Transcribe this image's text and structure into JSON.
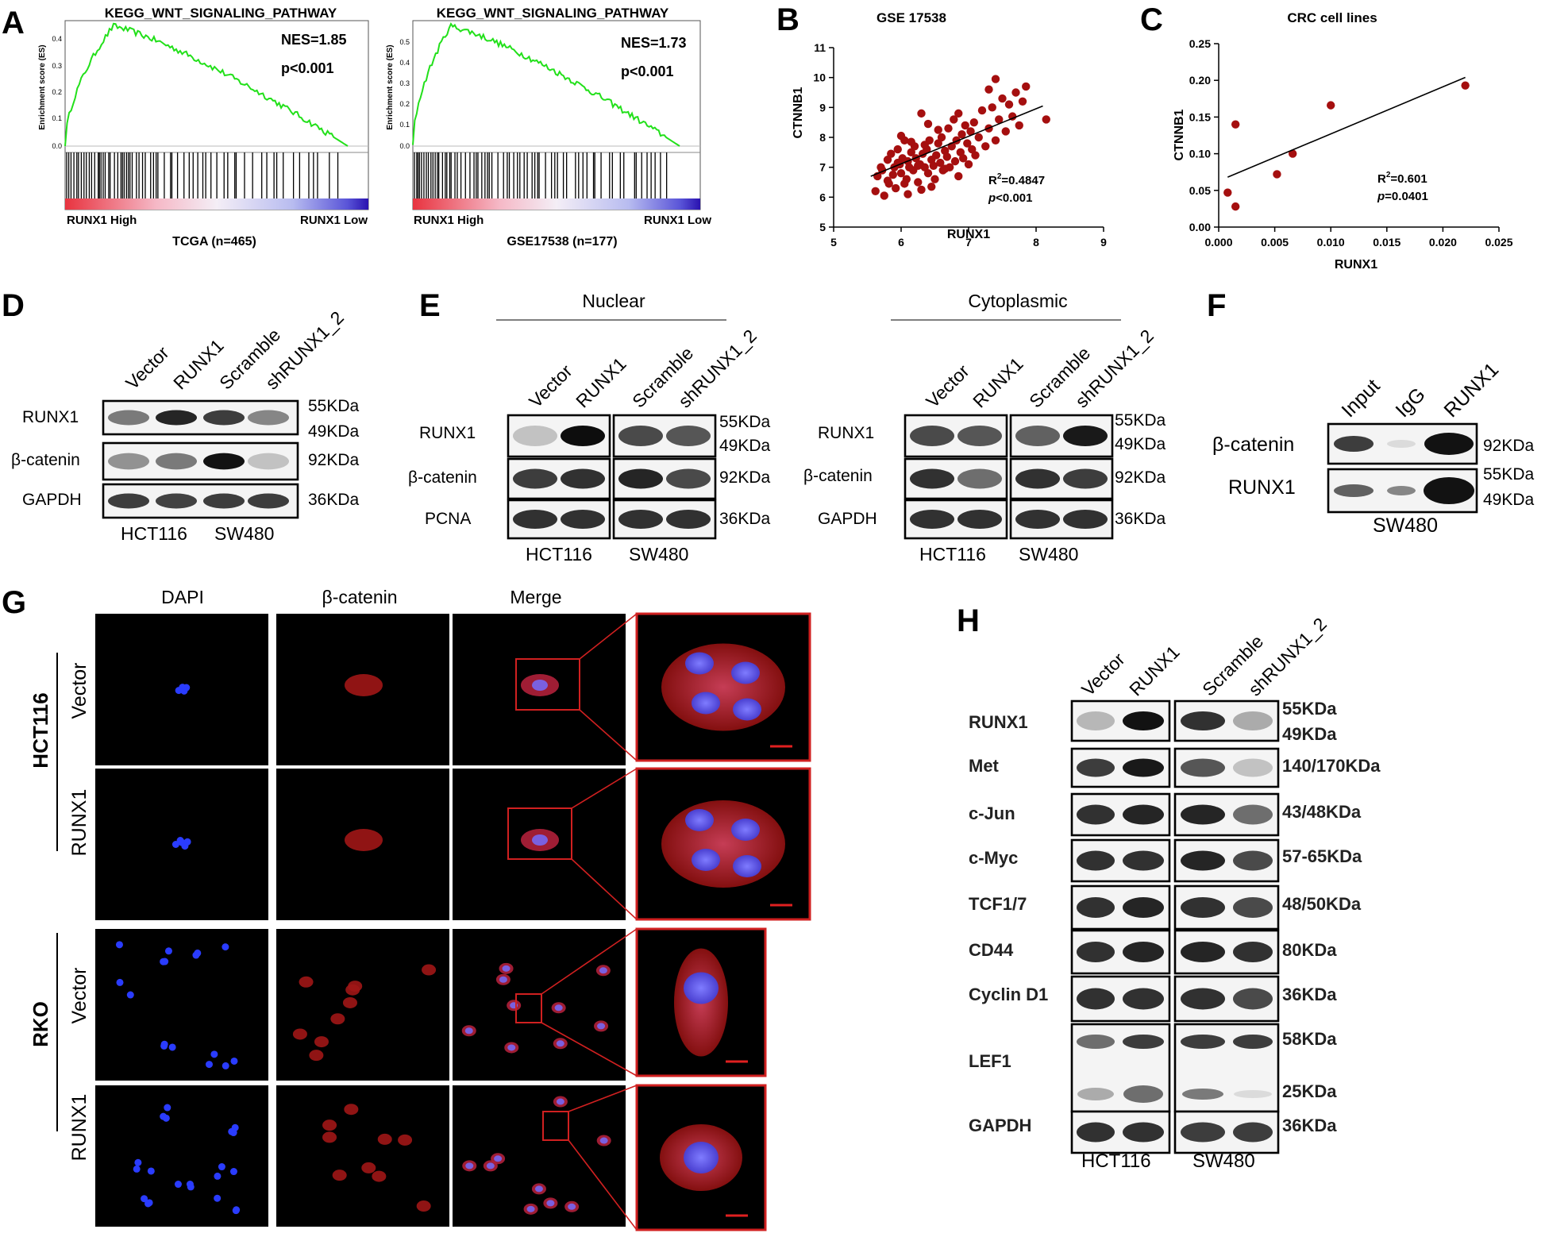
{
  "panels": {
    "A": "A",
    "B": "B",
    "C": "C",
    "D": "D",
    "E": "E",
    "F": "F",
    "G": "G",
    "H": "H"
  },
  "gsea": [
    {
      "title": "KEGG_WNT_SIGNALING_PATHWAY",
      "nes": "NES=1.85",
      "p": "p<0.001",
      "ylabel": "Enrichment score (ES)",
      "yticks": [
        "0.4",
        "0.3",
        "0.2",
        "0.1",
        "0.0"
      ],
      "high": "RUNX1 High",
      "low": "RUNX1 Low",
      "dataset": "TCGA (n=465)"
    },
    {
      "title": "KEGG_WNT_SIGNALING_PATHWAY",
      "nes": "NES=1.73",
      "p": "p<0.001",
      "ylabel": "Enrichment score (ES)",
      "yticks": [
        "0.5",
        "0.4",
        "0.3",
        "0.2",
        "0.1",
        "0.0"
      ],
      "high": "RUNX1 High",
      "low": "RUNX1 Low",
      "dataset": "GSE17538 (n=177)"
    }
  ],
  "chart_data": [
    {
      "type": "scatter",
      "title": "GSE 17538",
      "xlabel": "RUNX1",
      "ylabel": "CTNNB1",
      "xlim": [
        5,
        9
      ],
      "ylim": [
        5,
        11
      ],
      "xticks": [
        "5",
        "6",
        "7",
        "8",
        "9"
      ],
      "yticks": [
        "5",
        "6",
        "7",
        "8",
        "9",
        "10",
        "11"
      ],
      "r2": "=0.4847",
      "p": "<0.001",
      "fit": {
        "x": [
          5.55,
          8.1
        ],
        "y": [
          6.7,
          9.05
        ]
      },
      "points": [
        [
          5.62,
          6.2
        ],
        [
          5.65,
          6.7
        ],
        [
          5.7,
          7.0
        ],
        [
          5.72,
          6.9
        ],
        [
          5.75,
          6.05
        ],
        [
          5.8,
          7.25
        ],
        [
          5.82,
          6.45
        ],
        [
          5.85,
          7.45
        ],
        [
          5.88,
          6.75
        ],
        [
          5.9,
          7.0
        ],
        [
          5.92,
          6.3
        ],
        [
          5.95,
          7.6
        ],
        [
          5.98,
          7.1
        ],
        [
          6.0,
          6.8
        ],
        [
          6.02,
          7.3
        ],
        [
          6.05,
          7.9
        ],
        [
          6.08,
          6.6
        ],
        [
          6.1,
          7.2
        ],
        [
          6.12,
          7.0
        ],
        [
          6.15,
          7.5
        ],
        [
          6.18,
          6.9
        ],
        [
          6.2,
          7.7
        ],
        [
          6.22,
          7.3
        ],
        [
          6.25,
          6.5
        ],
        [
          6.28,
          7.1
        ],
        [
          6.3,
          8.8
        ],
        [
          6.32,
          7.45
        ],
        [
          6.35,
          7.0
        ],
        [
          6.38,
          7.6
        ],
        [
          6.4,
          6.8
        ],
        [
          6.42,
          7.9
        ],
        [
          6.45,
          7.25
        ],
        [
          6.48,
          7.05
        ],
        [
          6.5,
          6.6
        ],
        [
          6.52,
          7.4
        ],
        [
          6.55,
          7.8
        ],
        [
          6.58,
          7.15
        ],
        [
          6.6,
          8.0
        ],
        [
          6.62,
          6.9
        ],
        [
          6.65,
          7.55
        ],
        [
          6.68,
          7.35
        ],
        [
          6.7,
          8.3
        ],
        [
          6.72,
          7.0
        ],
        [
          6.75,
          7.7
        ],
        [
          6.78,
          8.6
        ],
        [
          6.8,
          7.2
        ],
        [
          6.82,
          7.9
        ],
        [
          6.85,
          6.7
        ],
        [
          6.88,
          7.5
        ],
        [
          6.9,
          8.1
        ],
        [
          6.92,
          7.3
        ],
        [
          6.95,
          8.4
        ],
        [
          6.98,
          7.8
        ],
        [
          7.0,
          7.1
        ],
        [
          7.03,
          8.2
        ],
        [
          7.05,
          7.6
        ],
        [
          7.08,
          8.5
        ],
        [
          7.1,
          7.4
        ],
        [
          7.15,
          8.0
        ],
        [
          7.2,
          8.9
        ],
        [
          7.25,
          7.7
        ],
        [
          7.3,
          8.3
        ],
        [
          7.35,
          9.0
        ],
        [
          7.4,
          7.9
        ],
        [
          7.45,
          8.6
        ],
        [
          7.5,
          9.3
        ],
        [
          7.55,
          8.2
        ],
        [
          7.6,
          9.1
        ],
        [
          7.65,
          8.7
        ],
        [
          7.7,
          9.5
        ],
        [
          7.75,
          8.4
        ],
        [
          7.8,
          9.2
        ],
        [
          6.05,
          6.45
        ],
        [
          6.25,
          7.05
        ],
        [
          6.45,
          6.35
        ],
        [
          6.65,
          6.95
        ],
        [
          5.95,
          7.15
        ],
        [
          6.35,
          7.75
        ],
        [
          6.55,
          8.25
        ],
        [
          6.15,
          7.85
        ],
        [
          7.4,
          9.95
        ],
        [
          7.3,
          9.6
        ],
        [
          8.15,
          8.6
        ],
        [
          7.85,
          9.7
        ],
        [
          6.0,
          8.05
        ],
        [
          6.4,
          8.45
        ],
        [
          6.85,
          8.8
        ],
        [
          6.1,
          6.1
        ],
        [
          5.8,
          6.55
        ],
        [
          6.3,
          6.25
        ]
      ]
    },
    {
      "type": "scatter",
      "title": "CRC cell lines",
      "xlabel": "RUNX1",
      "ylabel": "CTNNB1",
      "xlim": [
        0,
        0.025
      ],
      "ylim": [
        0,
        0.25
      ],
      "xticks": [
        "0.000",
        "0.005",
        "0.010",
        "0.015",
        "0.020",
        "0.025"
      ],
      "yticks": [
        "0.00",
        "0.05",
        "0.10",
        "0.15",
        "0.20",
        "0.25"
      ],
      "r2": "=0.601",
      "p": "=0.0401",
      "fit": {
        "x": [
          0.0008,
          0.022
        ],
        "y": [
          0.068,
          0.204
        ]
      },
      "points": [
        [
          0.0008,
          0.047
        ],
        [
          0.0015,
          0.028
        ],
        [
          0.0015,
          0.14
        ],
        [
          0.0052,
          0.072
        ],
        [
          0.0066,
          0.1
        ],
        [
          0.01,
          0.166
        ],
        [
          0.022,
          0.193
        ]
      ]
    }
  ],
  "labels": {
    "r2_prefix": "R",
    "r2_sup": "2",
    "p_italic": "p",
    "hct116": "HCT116",
    "sw480": "SW480",
    "nuclear": "Nuclear",
    "cytoplasmic": "Cytoplasmic"
  },
  "blotD": {
    "lanes": [
      "Vector",
      "RUNX1",
      "Scramble",
      "shRUNX1_2"
    ],
    "rows": [
      "RUNX1",
      "β-catenin",
      "GAPDH"
    ],
    "sizes": [
      "55KDa",
      "49KDa",
      "92KDa",
      "36KDa"
    ]
  },
  "blotE": {
    "lanes": [
      "Vector",
      "RUNX1",
      "Scramble",
      "shRUNX1_2"
    ],
    "nuclear_rows": [
      "RUNX1",
      "β-catenin",
      "PCNA"
    ],
    "cyto_rows": [
      "RUNX1",
      "β-catenin",
      "GAPDH"
    ],
    "sizes": [
      "55KDa",
      "49KDa",
      "92KDa",
      "36KDa"
    ]
  },
  "blotF": {
    "lanes": [
      "Input",
      "IgG",
      "RUNX1"
    ],
    "rows": [
      "β-catenin",
      "RUNX1"
    ],
    "sizes": [
      "92KDa",
      "55KDa",
      "49KDa"
    ],
    "cell": "SW480"
  },
  "panelG": {
    "columns": [
      "DAPI",
      "β-catenin",
      "Merge"
    ],
    "groups": [
      "HCT116",
      "RKO"
    ],
    "rows": [
      "Vector",
      "RUNX1",
      "Vector",
      "RUNX1"
    ]
  },
  "blotH": {
    "lanes": [
      "Vector",
      "RUNX1",
      "Scramble",
      "shRUNX1_2"
    ],
    "rows": [
      "RUNX1",
      "Met",
      "c-Jun",
      "c-Myc",
      "TCF1/7",
      "CD44",
      "Cyclin D1",
      "LEF1",
      "GAPDH"
    ],
    "sizes": [
      "55KDa",
      "49KDa",
      "140/170KDa",
      "43/48KDa",
      "57-65KDa",
      "48/50KDa",
      "80KDa",
      "36KDa",
      "58KDa",
      "25KDa",
      "36KDa"
    ]
  }
}
